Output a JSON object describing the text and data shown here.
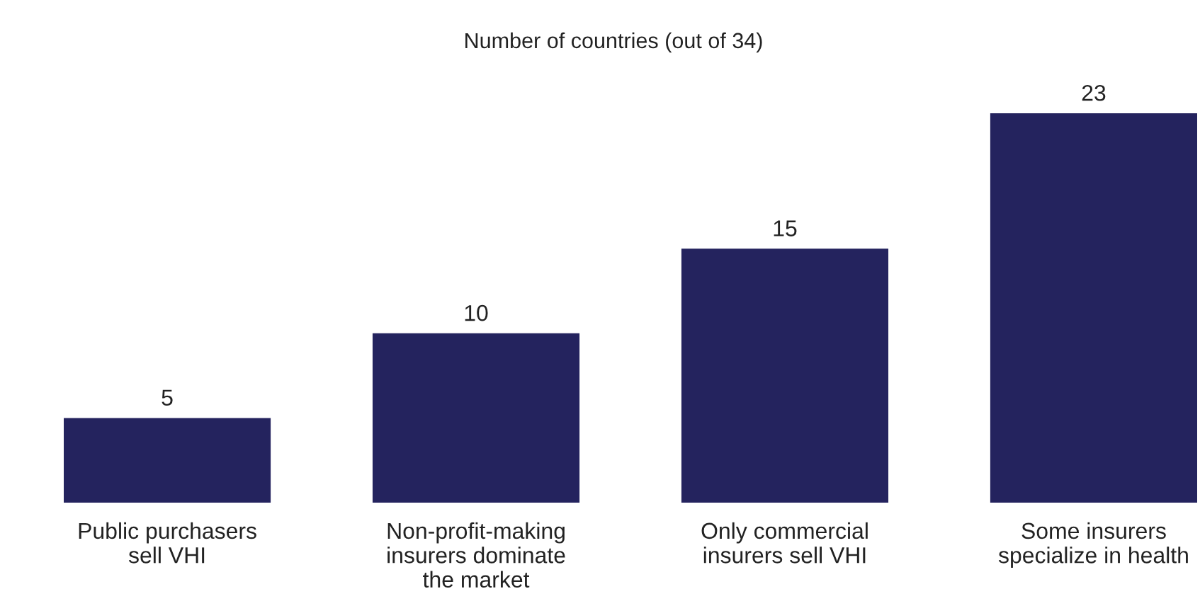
{
  "chart_data": {
    "type": "bar",
    "title": "Number of countries (out of 34)",
    "categories": [
      "Public purchasers\nsell VHI",
      "Non-profit-making\ninsurers dominate\nthe market",
      "Only commercial\ninsurers sell VHI",
      "Some insurers\nspecialize in health"
    ],
    "values": [
      5,
      10,
      15,
      23
    ],
    "color": "#24235e",
    "data_labels": true,
    "grid": false,
    "legend": false
  }
}
